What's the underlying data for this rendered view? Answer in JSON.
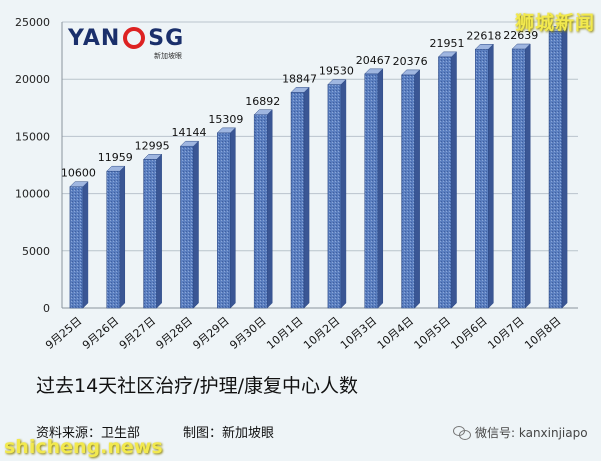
{
  "chart_data": {
    "type": "bar",
    "categories": [
      "9月25日",
      "9月26日",
      "9月27日",
      "9月28日",
      "9月29日",
      "9月30日",
      "10月1日",
      "10月2日",
      "10月3日",
      "10月4日",
      "10月5日",
      "10月6日",
      "10月7日",
      "10月8日"
    ],
    "values": [
      10600,
      11959,
      12995,
      14144,
      15309,
      16892,
      18847,
      19530,
      20467,
      20376,
      21951,
      22618,
      22639,
      24180
    ],
    "value_labels": [
      "10600",
      "11959",
      "12995",
      "14144",
      "15309",
      "16892",
      "18847",
      "19530",
      "20467",
      "20376",
      "21951",
      "22618",
      "22639",
      ""
    ],
    "ylim": [
      0,
      25000
    ],
    "yticks": [
      0,
      5000,
      10000,
      15000,
      20000,
      25000
    ],
    "grid": true,
    "bar_color": "#5b7fc0",
    "title": "",
    "xlabel": "",
    "ylabel": ""
  },
  "header": {
    "logo_left": "YAN",
    "logo_right": "SG",
    "logo_sub": "新加坡眼",
    "watermark": "狮城新闻"
  },
  "footer": {
    "subtitle": "过去14天社区治疗/护理/康复中心人数",
    "source": "资料来源：卫生部",
    "credit": "制图：新加坡眼",
    "wechat": "微信号: kanxinjiapo",
    "site": "shicheng.news"
  }
}
